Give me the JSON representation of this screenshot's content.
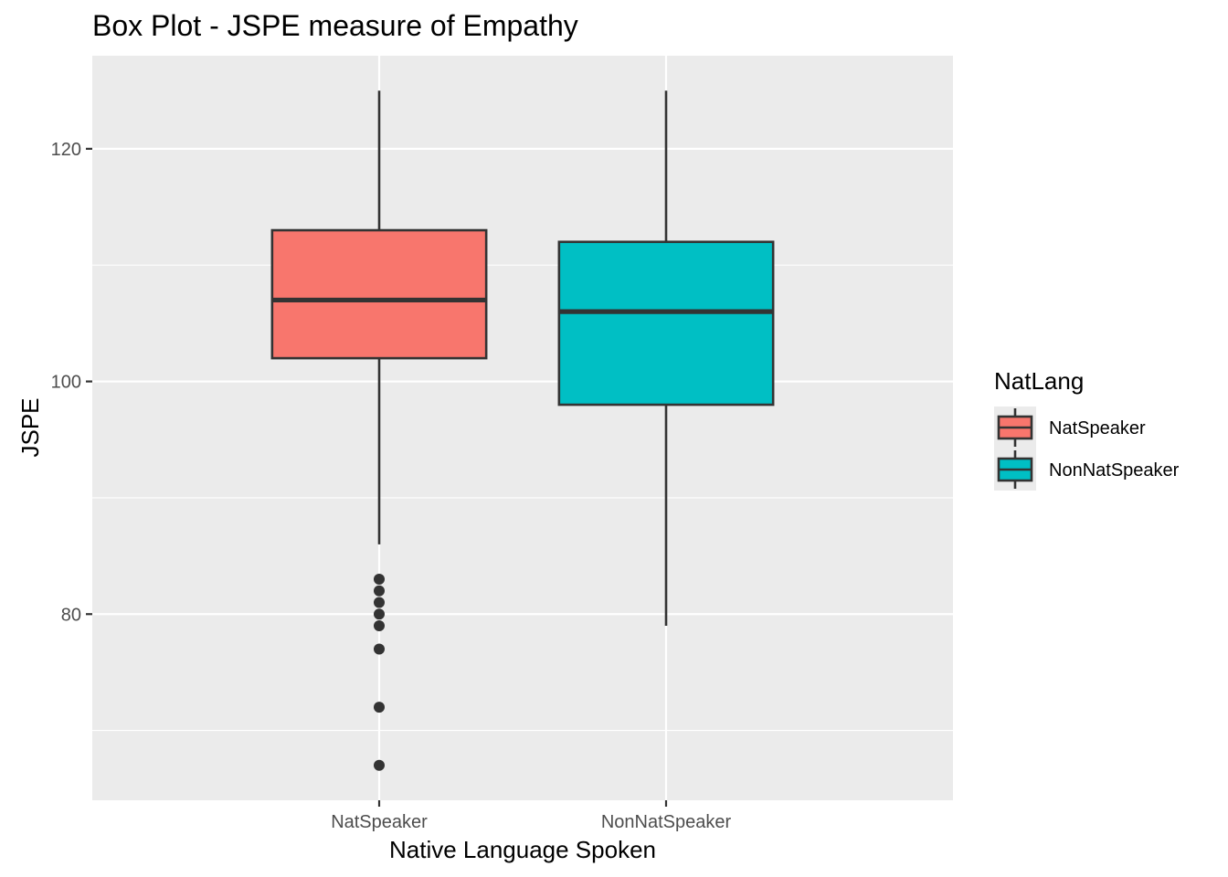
{
  "chart_data": {
    "type": "box",
    "title": "Box Plot - JSPE measure of Empathy",
    "xlabel": "Native Language Spoken",
    "ylabel": "JSPE",
    "categories": [
      "NatSpeaker",
      "NonNatSpeaker"
    ],
    "ylim": [
      64,
      128
    ],
    "yticks": [
      80,
      100,
      120
    ],
    "grid": true,
    "legend": {
      "title": "NatLang",
      "placement": "right",
      "entries": [
        "NatSpeaker",
        "NonNatSpeaker"
      ]
    },
    "series": [
      {
        "category": "NatSpeaker",
        "color": "#F8766D",
        "whisker_low": 86,
        "q1": 102,
        "median": 107,
        "q3": 113,
        "whisker_high": 125,
        "outliers": [
          83,
          82,
          81,
          80,
          79,
          77,
          72,
          67
        ]
      },
      {
        "category": "NonNatSpeaker",
        "color": "#00BFC4",
        "whisker_low": 79,
        "q1": 98,
        "median": 106,
        "q3": 112,
        "whisker_high": 125,
        "outliers": []
      }
    ]
  }
}
